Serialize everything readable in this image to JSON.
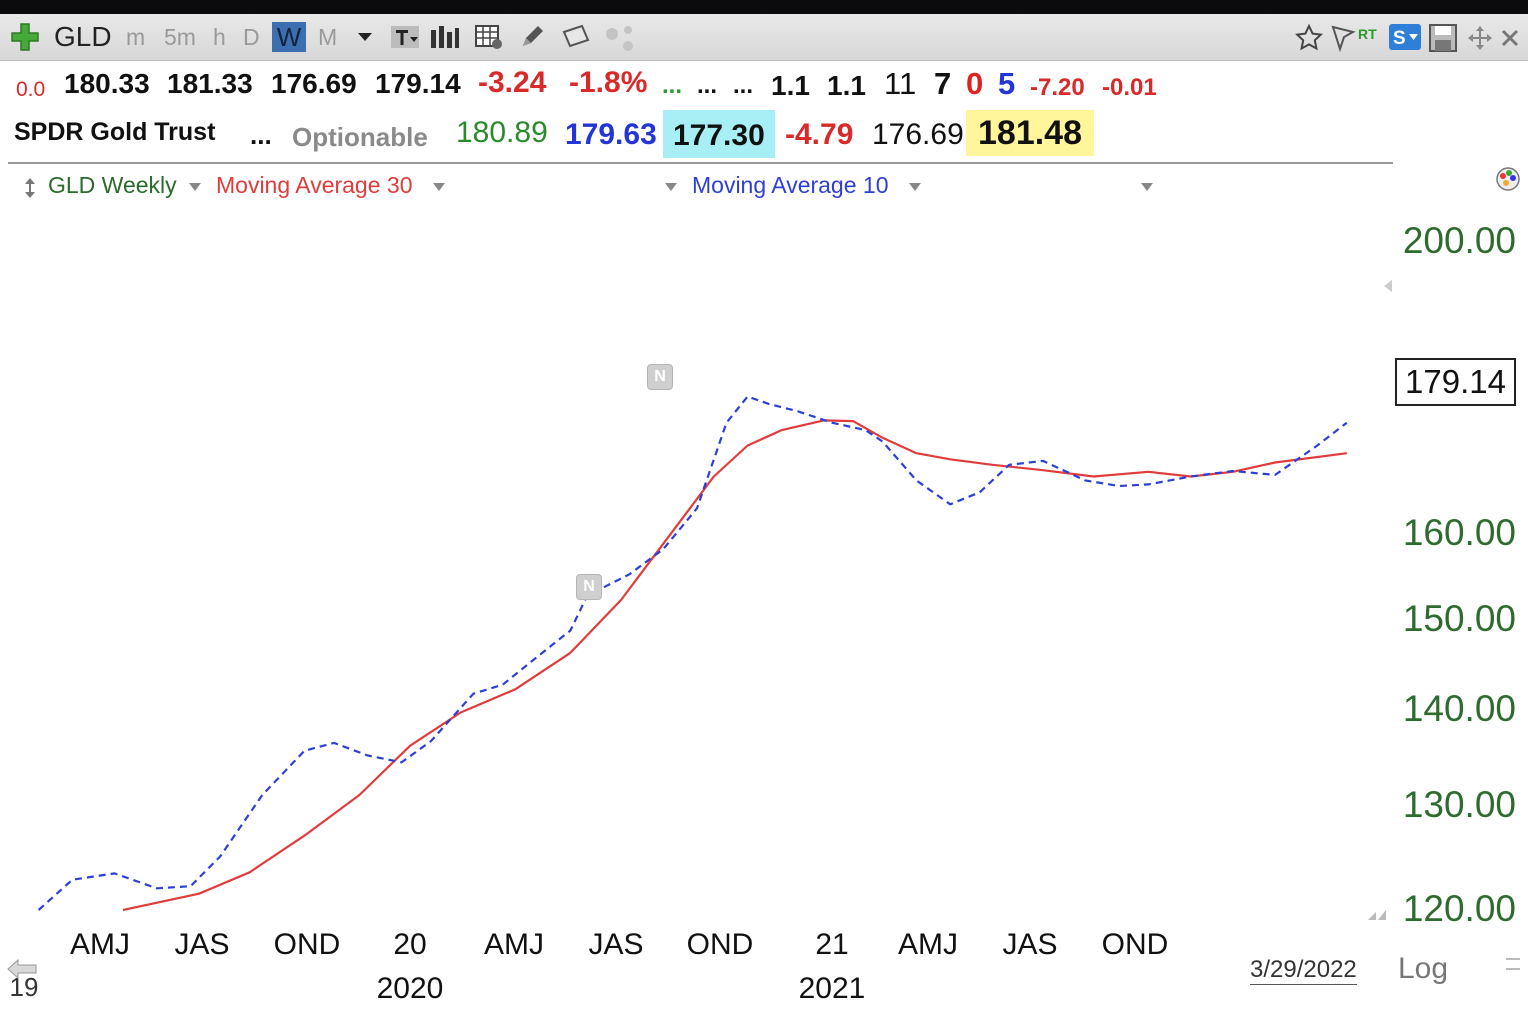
{
  "toolbar": {
    "symbol": "GLD",
    "intervals": [
      "m",
      "5m",
      "h",
      "D",
      "W",
      "M"
    ],
    "active_interval": "W"
  },
  "quote_row1": {
    "change_small": "0.0",
    "open": "180.33",
    "high": "181.33",
    "low": "176.69",
    "close": "179.14",
    "change": "-3.24",
    "change_pct": "-1.8%",
    "dots1": "...",
    "dots2": "...",
    "dots3": "...",
    "v1": "1.1",
    "v2": "1.1",
    "n1": "11",
    "n2": "7",
    "n3": "0",
    "n4": "5",
    "d1": "-7.20",
    "d2": "-0.01"
  },
  "quote_row2": {
    "name": "SPDR Gold Trust",
    "dots": "...",
    "optionable": "Optionable",
    "v1": "180.89",
    "v2": "179.63",
    "v3": "177.30",
    "v4": "-4.79",
    "v5": "176.69",
    "v6": "181.48"
  },
  "legend": {
    "main": "GLD Weekly",
    "ma30": "Moving Average 30",
    "ma10": "Moving Average 10"
  },
  "price_label": "179.14",
  "footer": {
    "date": "3/29/2022",
    "log": "Log",
    "left_tick": "19"
  },
  "colors": {
    "ma30": "#e03c3c",
    "ma10": "#2e3fd6",
    "axis_text": "#2e6b2e",
    "highlight_cyan": "#a8eef5",
    "highlight_yellow": "#fff59a"
  },
  "chart_data": {
    "type": "line",
    "y_ticks": [
      "200.00",
      "160.00",
      "150.00",
      "140.00",
      "130.00",
      "120.00"
    ],
    "y_scale": "log",
    "x_ticks": [
      "AMJ",
      "JAS",
      "OND",
      "20",
      "AMJ",
      "JAS",
      "OND",
      "21",
      "AMJ",
      "JAS",
      "OND"
    ],
    "x_years": [
      "2020",
      "2021"
    ],
    "series": [
      {
        "name": "Moving Average 30",
        "style": "solid",
        "color": "#e03c3c",
        "points": [
          [
            2019.32,
            120.0
          ],
          [
            2019.5,
            121.5
          ],
          [
            2019.62,
            123.5
          ],
          [
            2019.75,
            127.0
          ],
          [
            2019.88,
            131.0
          ],
          [
            2020.0,
            136.0
          ],
          [
            2020.12,
            139.5
          ],
          [
            2020.25,
            142.0
          ],
          [
            2020.38,
            146.0
          ],
          [
            2020.5,
            152.0
          ],
          [
            2020.62,
            160.0
          ],
          [
            2020.72,
            167.0
          ],
          [
            2020.8,
            171.0
          ],
          [
            2020.88,
            173.0
          ],
          [
            2020.98,
            174.3
          ],
          [
            2021.05,
            174.2
          ],
          [
            2021.12,
            172.0
          ],
          [
            2021.2,
            170.0
          ],
          [
            2021.28,
            169.2
          ],
          [
            2021.38,
            168.5
          ],
          [
            2021.5,
            167.8
          ],
          [
            2021.62,
            167.0
          ],
          [
            2021.75,
            167.6
          ],
          [
            2021.85,
            167.0
          ],
          [
            2021.95,
            167.6
          ],
          [
            2022.05,
            168.8
          ],
          [
            2022.22,
            170.0
          ]
        ]
      },
      {
        "name": "Moving Average 10",
        "style": "dashed",
        "color": "#2e3fd6",
        "points": [
          [
            2019.12,
            120.0
          ],
          [
            2019.2,
            122.8
          ],
          [
            2019.3,
            123.4
          ],
          [
            2019.4,
            122.0
          ],
          [
            2019.48,
            122.2
          ],
          [
            2019.55,
            125.0
          ],
          [
            2019.65,
            131.0
          ],
          [
            2019.75,
            135.5
          ],
          [
            2019.82,
            136.3
          ],
          [
            2019.9,
            135.0
          ],
          [
            2019.98,
            134.3
          ],
          [
            2020.05,
            136.5
          ],
          [
            2020.15,
            141.5
          ],
          [
            2020.22,
            142.5
          ],
          [
            2020.3,
            145.5
          ],
          [
            2020.38,
            148.5
          ],
          [
            2020.42,
            152.5
          ],
          [
            2020.52,
            155.0
          ],
          [
            2020.6,
            158.0
          ],
          [
            2020.68,
            163.0
          ],
          [
            2020.75,
            174.0
          ],
          [
            2020.8,
            177.5
          ],
          [
            2020.85,
            176.5
          ],
          [
            2020.92,
            175.5
          ],
          [
            2021.0,
            174.0
          ],
          [
            2021.08,
            173.0
          ],
          [
            2021.12,
            171.5
          ],
          [
            2021.2,
            166.5
          ],
          [
            2021.28,
            163.5
          ],
          [
            2021.35,
            165.0
          ],
          [
            2021.42,
            168.5
          ],
          [
            2021.5,
            169.0
          ],
          [
            2021.6,
            166.5
          ],
          [
            2021.68,
            165.8
          ],
          [
            2021.75,
            166.0
          ],
          [
            2021.85,
            167.0
          ],
          [
            2021.95,
            167.7
          ],
          [
            2022.05,
            167.2
          ],
          [
            2022.15,
            171.0
          ],
          [
            2022.22,
            174.0
          ]
        ]
      }
    ]
  }
}
